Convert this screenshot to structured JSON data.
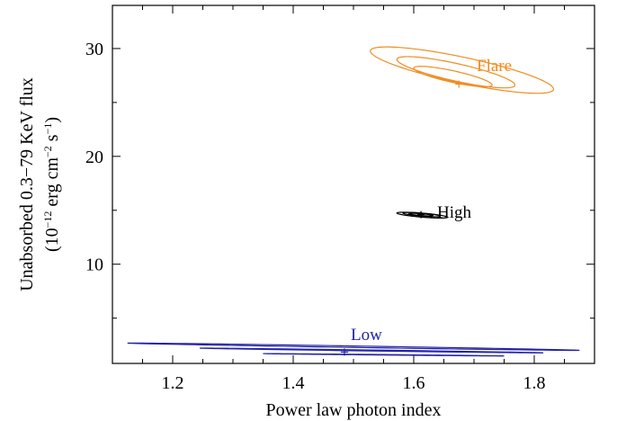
{
  "chart_data": {
    "type": "scatter",
    "xlabel": "Power law photon index",
    "ylabel_line1": "Unabsorbed 0.3−79 KeV flux",
    "ylabel_line2_prefix": "(10",
    "ylabel_exp1": "−12",
    "ylabel_mid": " erg cm",
    "ylabel_exp2": "−2",
    "ylabel_mid2": " s",
    "ylabel_exp3": "−1",
    "ylabel_suffix": ")",
    "xlim": [
      1.1,
      1.9
    ],
    "ylim": [
      0.8,
      34
    ],
    "xticks": [
      1.2,
      1.4,
      1.6,
      1.8
    ],
    "yticks": [
      10,
      20,
      30
    ],
    "xtick_labels": [
      "1.2",
      "1.4",
      "1.6",
      "1.8"
    ],
    "ytick_labels": [
      "10",
      "20",
      "30"
    ],
    "grid": false,
    "series": [
      {
        "name": "Flare",
        "color": "#f08c1e",
        "best_fit": {
          "x": 1.675,
          "y": 26.7
        },
        "contours": [
          {
            "cx": 1.665,
            "cy": 27.4,
            "a": 0.065,
            "b": 0.95
          },
          {
            "cx": 1.67,
            "cy": 27.8,
            "a": 0.098,
            "b": 1.45
          },
          {
            "cx": 1.68,
            "cy": 28.0,
            "a": 0.152,
            "b": 2.15
          }
        ]
      },
      {
        "name": "High",
        "color": "#000000",
        "best_fit": {
          "x": 1.612,
          "y": 14.6
        },
        "contours": [
          {
            "cx": 1.612,
            "cy": 14.6,
            "a": 0.02,
            "b": 0.12
          },
          {
            "cx": 1.613,
            "cy": 14.6,
            "a": 0.031,
            "b": 0.2
          },
          {
            "cx": 1.614,
            "cy": 14.55,
            "a": 0.042,
            "b": 0.27
          }
        ]
      },
      {
        "name": "Low",
        "color": "#2323a8",
        "best_fit": {
          "x": 1.485,
          "y": 1.85
        },
        "contours": [
          {
            "cx": 1.55,
            "cy": 1.6,
            "a": 0.2,
            "b": 0.11
          },
          {
            "cx": 1.53,
            "cy": 2.0,
            "a": 0.285,
            "b": 0.22
          },
          {
            "cx": 1.5,
            "cy": 2.35,
            "a": 0.375,
            "b": 0.34
          }
        ]
      }
    ]
  }
}
